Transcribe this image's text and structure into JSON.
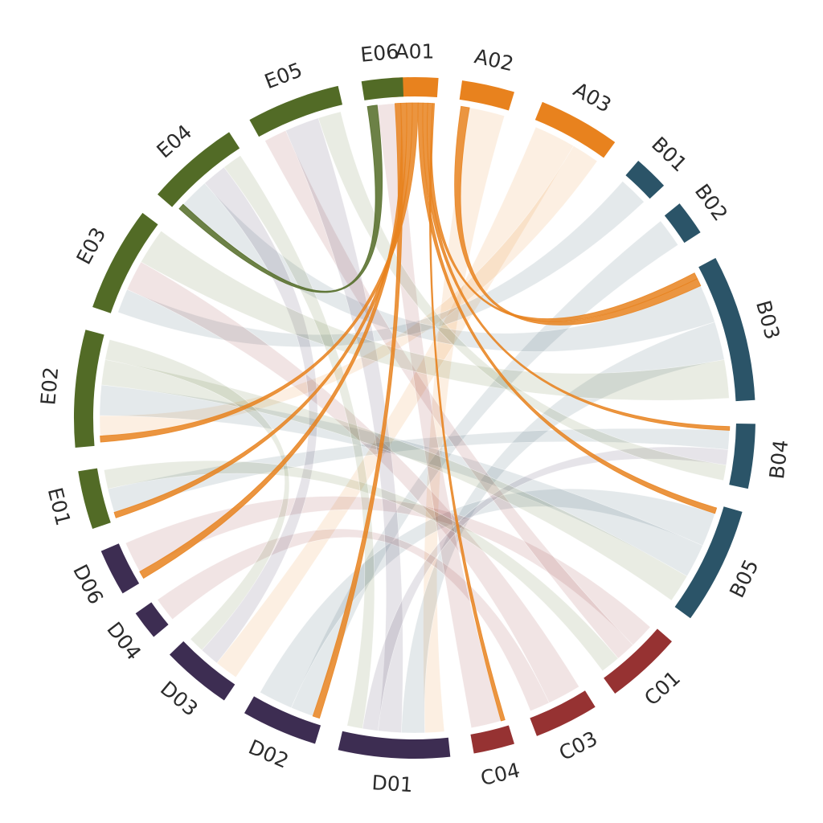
{
  "chart_data": {
    "type": "chord",
    "title": "",
    "groups": [
      {
        "id": "A",
        "color": "#e8821e"
      },
      {
        "id": "B",
        "color": "#2b5468"
      },
      {
        "id": "C",
        "color": "#963232"
      },
      {
        "id": "D",
        "color": "#3d2d52"
      },
      {
        "id": "E",
        "color": "#526b26"
      }
    ],
    "segments": [
      {
        "label": "A01",
        "group": "A",
        "start": -4.0,
        "end": 4.0
      },
      {
        "label": "A02",
        "group": "A",
        "start": 8.0,
        "end": 17.0
      },
      {
        "label": "A03",
        "group": "A",
        "start": 22.0,
        "end": 36.0
      },
      {
        "label": "B01",
        "group": "B",
        "start": 41.0,
        "end": 47.0
      },
      {
        "label": "B02",
        "group": "B",
        "start": 51.0,
        "end": 57.0
      },
      {
        "label": "B03",
        "group": "B",
        "start": 62.0,
        "end": 87.0
      },
      {
        "label": "B04",
        "group": "B",
        "start": 91.0,
        "end": 102.0
      },
      {
        "label": "B05",
        "group": "B",
        "start": 106.0,
        "end": 126.0
      },
      {
        "label": "C01",
        "group": "C",
        "start": 131.0,
        "end": 144.0
      },
      {
        "label": "C03",
        "group": "C",
        "start": 148.0,
        "end": 159.0
      },
      {
        "label": "C04",
        "group": "C",
        "start": 163.0,
        "end": 170.0
      },
      {
        "label": "D01",
        "group": "D",
        "start": 174.0,
        "end": 193.0
      },
      {
        "label": "D02",
        "group": "D",
        "start": 197.0,
        "end": 210.0
      },
      {
        "label": "D03",
        "group": "D",
        "start": 214.0,
        "end": 226.0
      },
      {
        "label": "D04",
        "group": "D",
        "start": 230.0,
        "end": 235.0
      },
      {
        "label": "D06",
        "group": "D",
        "start": 239.0,
        "end": 247.0
      },
      {
        "label": "E01",
        "group": "E",
        "start": 251.0,
        "end": 261.0
      },
      {
        "label": "E02",
        "group": "E",
        "start": 265.0,
        "end": 285.0
      },
      {
        "label": "E03",
        "group": "E",
        "start": 289.0,
        "end": 307.0
      },
      {
        "label": "E04",
        "group": "E",
        "start": 311.0,
        "end": 327.0
      },
      {
        "label": "E05",
        "group": "E",
        "start": 331.0,
        "end": 347.0
      },
      {
        "label": "E06",
        "group": "E",
        "start": 351.0,
        "end": 358.0
      }
    ],
    "links": [
      {
        "source": "A01",
        "target": "D02",
        "value": 1.2,
        "highlight": true
      },
      {
        "source": "A01",
        "target": "D06",
        "value": 1.2,
        "highlight": true
      },
      {
        "source": "A01",
        "target": "E01",
        "value": 1.2,
        "highlight": true
      },
      {
        "source": "A01",
        "target": "E02",
        "value": 1.2,
        "highlight": true
      },
      {
        "source": "A01",
        "target": "B05",
        "value": 1.0,
        "highlight": true
      },
      {
        "source": "A01",
        "target": "B04",
        "value": 1.0,
        "highlight": true
      },
      {
        "source": "A01",
        "target": "B03",
        "value": 1.0,
        "highlight": true
      },
      {
        "source": "A01",
        "target": "C04",
        "value": 0.4,
        "highlight": true
      },
      {
        "source": "A02",
        "target": "B03",
        "value": 1.2,
        "highlight": true
      },
      {
        "source": "E06",
        "target": "E04",
        "value": 1.2,
        "highlight": true
      },
      {
        "source": "A02",
        "target": "D01",
        "value": 5,
        "highlight": false
      },
      {
        "source": "A03",
        "target": "D03",
        "value": 6,
        "highlight": false
      },
      {
        "source": "A03",
        "target": "E02",
        "value": 4,
        "highlight": false
      },
      {
        "source": "B01",
        "target": "E03",
        "value": 4,
        "highlight": false
      },
      {
        "source": "B02",
        "target": "D02",
        "value": 4,
        "highlight": false
      },
      {
        "source": "B03",
        "target": "E04",
        "value": 6,
        "highlight": false
      },
      {
        "source": "B03",
        "target": "D01",
        "value": 6,
        "highlight": false
      },
      {
        "source": "B04",
        "target": "E01",
        "value": 5,
        "highlight": false
      },
      {
        "source": "B05",
        "target": "D02",
        "value": 6,
        "highlight": false
      },
      {
        "source": "B05",
        "target": "E02",
        "value": 6,
        "highlight": false
      },
      {
        "source": "C01",
        "target": "D06",
        "value": 5,
        "highlight": false
      },
      {
        "source": "C01",
        "target": "E05",
        "value": 4,
        "highlight": false
      },
      {
        "source": "C03",
        "target": "E03",
        "value": 5,
        "highlight": false
      },
      {
        "source": "C03",
        "target": "D04",
        "value": 3,
        "highlight": false
      },
      {
        "source": "C04",
        "target": "E06",
        "value": 3,
        "highlight": false
      },
      {
        "source": "D01",
        "target": "E05",
        "value": 6,
        "highlight": false
      },
      {
        "source": "D01",
        "target": "B04",
        "value": 4,
        "highlight": false
      },
      {
        "source": "D03",
        "target": "E04",
        "value": 5,
        "highlight": false
      },
      {
        "source": "E02",
        "target": "B05",
        "value": 5,
        "highlight": false
      },
      {
        "source": "E03",
        "target": "B03",
        "value": 6,
        "highlight": false
      },
      {
        "source": "E05",
        "target": "B04",
        "value": 4,
        "highlight": false
      },
      {
        "source": "E01",
        "target": "C01",
        "value": 4,
        "highlight": false
      },
      {
        "source": "E02",
        "target": "D03",
        "value": 4,
        "highlight": false
      },
      {
        "source": "E04",
        "target": "D01",
        "value": 4,
        "highlight": false
      }
    ],
    "legend": "none",
    "grid": false
  }
}
